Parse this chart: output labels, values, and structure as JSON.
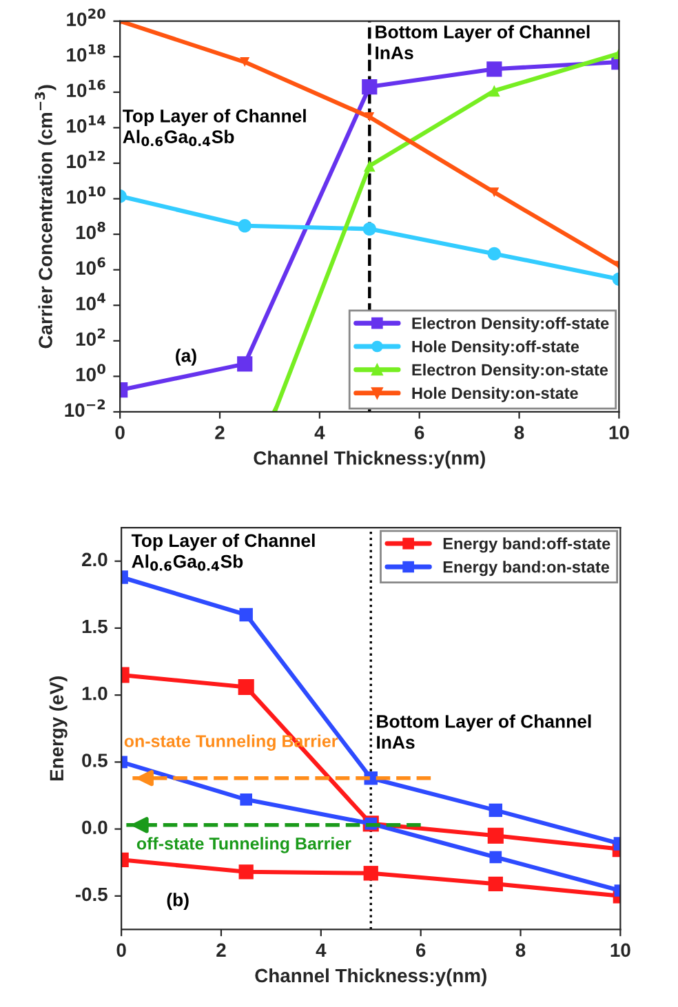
{
  "chart_data": [
    {
      "type": "line",
      "xlabel": "Channel Thickness:y(nm)",
      "ylabel": "Carrier Concentration (cm$^{−3}$)",
      "log": "y",
      "xlim": [
        0,
        10
      ],
      "xticks": [
        0,
        2,
        4,
        6,
        8,
        10
      ],
      "ylim": [
        0.01,
        1e+20
      ],
      "yticks": [
        {
          "value": 0.01,
          "label": "10$^{−2}$"
        },
        {
          "value": 1,
          "label": "10$^{0}$"
        },
        {
          "value": 100,
          "label": "10$^{2}$"
        },
        {
          "value": 10000.0,
          "label": "10$^{4}$"
        },
        {
          "value": 1000000.0,
          "label": "10$^{6}$"
        },
        {
          "value": 100000000.0,
          "label": "10$^{8}$"
        },
        {
          "value": 10000000000.0,
          "label": "10$^{10}$"
        },
        {
          "value": 1000000000000.0,
          "label": "10$^{12}$"
        },
        {
          "value": 100000000000000.0,
          "label": "10$^{14}$"
        },
        {
          "value": 1e+16,
          "label": "10$^{16}$"
        },
        {
          "value": 1e+18,
          "label": "10$^{18}$"
        },
        {
          "value": 1e+20,
          "label": "10$^{20}$"
        }
      ],
      "x": [
        0,
        2.5,
        5,
        7.5,
        10
      ],
      "series": [
        {
          "name": "Electron Density:off-state",
          "color": "#6633ee",
          "marker": "square",
          "values": [
            0.17,
            5,
            2e+16,
            2e+17,
            5e+17
          ]
        },
        {
          "name": "Hole Density:off-state",
          "color": "#33ccff",
          "marker": "circle",
          "values": [
            14000000000.0,
            300000000.0,
            200000000.0,
            8000000.0,
            300000.0
          ]
        },
        {
          "name": "Electron Density:on-state",
          "color": "#77ee22",
          "marker": "triangle",
          "x": [
            3.1,
            5,
            7.5,
            10
          ],
          "values": [
            0.01,
            700000000000.0,
            1.2e+16,
            1.5e+18
          ]
        },
        {
          "name": "Hole Density:on-state",
          "color": "#ff5511",
          "marker": "triangle_down",
          "values": [
            1e+20,
            5e+17,
            400000000000000.0,
            23000000000.0,
            1700000.0
          ]
        }
      ],
      "ref_lines": [
        {
          "axis": "x",
          "value": 5,
          "color": "#000000",
          "line_style": "dashed"
        }
      ],
      "annotations": [
        "Top Layer of Channel\nAl$_{0.6}$Ga$_{0.4}$Sb",
        "Bottom Layer of Channel\nInAs",
        "(a)"
      ],
      "legend": "bottom right",
      "grid": false,
      "line_style": "solid"
    },
    {
      "type": "line",
      "xlabel": "Channel Thickness:y(nm)",
      "ylabel": "Energy (eV)",
      "xlim": [
        0,
        10
      ],
      "xticks": [
        0,
        2,
        4,
        6,
        8,
        10
      ],
      "ylim": [
        -0.75,
        2.25
      ],
      "yticks": [
        -0.5,
        {
          "value": 0,
          "label": "0.0"
        },
        0.5,
        {
          "value": 1,
          "label": "1.0"
        },
        1.5,
        {
          "value": 2,
          "label": "2.0"
        }
      ],
      "x": [
        0,
        2.5,
        5,
        7.5,
        10
      ],
      "series": [
        {
          "name": "Energy band:off-state",
          "color": "#ff1a1a",
          "marker": "square",
          "values": [
            1.15,
            1.06,
            0.04,
            -0.05,
            -0.15
          ]
        },
        {
          "color": "#ff1a1a",
          "marker": "square",
          "values": [
            -0.23,
            -0.32,
            -0.33,
            -0.41,
            -0.5
          ]
        },
        {
          "name": "Energy band:on-state",
          "color": "#2e4bff",
          "marker": "square",
          "values": [
            1.88,
            1.6,
            0.38,
            0.14,
            -0.11
          ]
        },
        {
          "color": "#2e4bff",
          "marker": "square",
          "values": [
            0.5,
            0.22,
            0.04,
            -0.21,
            -0.46
          ]
        },
        {
          "color": "#ff8c1a",
          "marker": "none",
          "line_style": "dashed",
          "x": [
            6.2,
            0.2
          ],
          "values": [
            0.38,
            0.38
          ]
        },
        {
          "color": "#1a9a1a",
          "marker": "none",
          "line_style": "dashed",
          "x": [
            6.0,
            0.1
          ],
          "values": [
            0.03,
            0.03
          ]
        }
      ],
      "ref_lines": [
        {
          "axis": "x",
          "value": 5,
          "color": "#000000",
          "line_style": "dotted"
        }
      ],
      "annotations": [
        "Top Layer of Channel\nAl$_{0.6}$Ga$_{0.4}$Sb",
        "Bottom Layer of Channel\nInAs",
        "(b)",
        "on-state Tunneling Barrier",
        "off-state Tunneling Barrier"
      ],
      "legend": "top right",
      "grid": false,
      "line_style": "solid"
    }
  ]
}
